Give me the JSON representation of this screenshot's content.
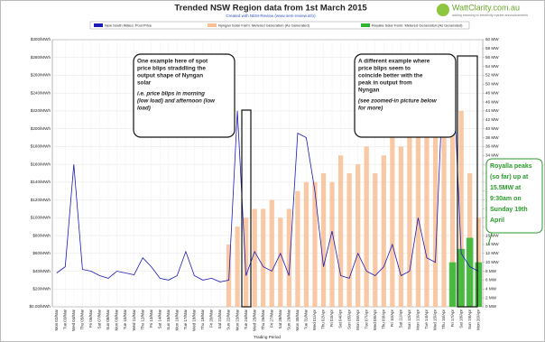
{
  "chart_data": {
    "type": "line",
    "title": "Trended NSW Region data from 1st March 2015",
    "subtitle": "Created with NEM-Review (www.nem-review.info)",
    "brand": "WattClarity.com.au",
    "tagline": "adding meaning to electricity market announcements",
    "x_label": "Trading Period",
    "categories": [
      "Mon 02/Mar",
      "Tue 03/Mar",
      "Wed 04/Mar",
      "Thu 05/Mar",
      "Fri 06/Mar",
      "Sat 07/Mar",
      "Sun 08/Mar",
      "Mon 09/Mar",
      "Tue 10/Mar",
      "Wed 11/Mar",
      "Thu 12/Mar",
      "Fri 13/Mar",
      "Sat 14/Mar",
      "Sun 15/Mar",
      "Mon 16/Mar",
      "Tue 17/Mar",
      "Wed 18/Mar",
      "Thu 19/Mar",
      "Fri 20/Mar",
      "Sat 21/Mar",
      "Sun 22/Mar",
      "Mon 23/Mar",
      "Tue 24/Mar",
      "Wed 25/Mar",
      "Thu 26/Mar",
      "Fri 27/Mar",
      "Sat 28/Mar",
      "Sun 29/Mar",
      "Mon 30/Mar",
      "Tue 31/Mar",
      "Wed 01/Apr",
      "Thu 02/Apr",
      "Fri 03/Apr",
      "Sat 04/Apr",
      "Sun 05/Apr",
      "Mon 06/Apr",
      "Tue 07/Apr",
      "Wed 08/Apr",
      "Thu 09/Apr",
      "Fri 10/Apr",
      "Sat 11/Apr",
      "Sun 12/Apr",
      "Mon 13/Apr",
      "Tue 14/Apr",
      "Wed 15/Apr",
      "Thu 16/Apr",
      "Fri 17/Apr",
      "Sat 18/Apr",
      "Sun 19/Apr",
      "Mon 20/Apr"
    ],
    "series": [
      {
        "name": "New South Wales: Pool Price",
        "color": "#1a1ab8",
        "values": [
          38,
          45,
          160,
          42,
          40,
          35,
          32,
          40,
          38,
          36,
          55,
          45,
          32,
          30,
          35,
          62,
          35,
          30,
          32,
          28,
          30,
          220,
          35,
          62,
          45,
          40,
          60,
          35,
          195,
          190,
          130,
          45,
          85,
          35,
          32,
          60,
          40,
          35,
          45,
          70,
          35,
          40,
          100,
          55,
          50,
          280,
          280,
          60,
          45,
          40
        ]
      },
      {
        "name": "Nyngan Solar Farm: Metered Generation (As Generated)",
        "color": "#f7bf94",
        "axis": "y2",
        "values": [
          null,
          null,
          null,
          null,
          null,
          null,
          null,
          null,
          null,
          null,
          null,
          null,
          null,
          null,
          null,
          null,
          null,
          null,
          null,
          null,
          14,
          18,
          20,
          22,
          22,
          24,
          20,
          22,
          26,
          28,
          28,
          30,
          28,
          34,
          30,
          32,
          36,
          30,
          34,
          38,
          36,
          40,
          42,
          38,
          44,
          46,
          40,
          44,
          30,
          20
        ]
      },
      {
        "name": "Royalla Solar Farm: Metered Generation (As Generated)",
        "color": "#2db52d",
        "axis": "y2",
        "values": [
          null,
          null,
          null,
          null,
          null,
          null,
          null,
          null,
          null,
          null,
          null,
          null,
          null,
          null,
          null,
          null,
          null,
          null,
          null,
          null,
          null,
          null,
          null,
          null,
          null,
          null,
          null,
          null,
          null,
          null,
          null,
          null,
          null,
          null,
          null,
          null,
          null,
          null,
          null,
          null,
          null,
          null,
          null,
          null,
          null,
          null,
          10,
          13,
          15.5,
          10
        ]
      }
    ],
    "ylim": [
      0,
      300
    ],
    "yticks": [
      {
        "value": 0,
        "label": "$0.00/MWh"
      },
      {
        "value": 20,
        "label": "$20/MWh"
      },
      {
        "value": 40,
        "label": "$40/MWh"
      },
      {
        "value": 60,
        "label": "$60/MWh"
      },
      {
        "value": 80,
        "label": "$80/MWh"
      },
      {
        "value": 100,
        "label": "$100/MWh"
      },
      {
        "value": 120,
        "label": "$120/MWh"
      },
      {
        "value": 140,
        "label": "$140/MWh"
      },
      {
        "value": 160,
        "label": "$160/MWh"
      },
      {
        "value": 180,
        "label": "$180/MWh"
      },
      {
        "value": 200,
        "label": "$200/MWh"
      },
      {
        "value": 220,
        "label": "$220/MWh"
      },
      {
        "value": 240,
        "label": "$240/MWh"
      },
      {
        "value": 260,
        "label": "$260/MWh"
      },
      {
        "value": 280,
        "label": "$280/MWh"
      },
      {
        "value": 300,
        "label": "$300/MWh"
      }
    ],
    "y2lim": [
      0,
      60
    ],
    "y2ticks": [
      {
        "value": 0,
        "label": "0 MW"
      },
      {
        "value": 2,
        "label": "2 MW"
      },
      {
        "value": 4,
        "label": "4 MW"
      },
      {
        "value": 6,
        "label": "6 MW"
      },
      {
        "value": 8,
        "label": "8 MW"
      },
      {
        "value": 10,
        "label": "10 MW"
      },
      {
        "value": 12,
        "label": "12 MW"
      },
      {
        "value": 14,
        "label": "14 MW"
      },
      {
        "value": 16,
        "label": "16 MW"
      },
      {
        "value": 18,
        "label": "18 MW"
      },
      {
        "value": 20,
        "label": "20 MW"
      },
      {
        "value": 22,
        "label": "22 MW"
      },
      {
        "value": 24,
        "label": "24 MW"
      },
      {
        "value": 26,
        "label": "26 MW"
      },
      {
        "value": 28,
        "label": "28 MW"
      },
      {
        "value": 30,
        "label": "30 MW"
      },
      {
        "value": 32,
        "label": "32 MW"
      },
      {
        "value": 34,
        "label": "34 MW"
      },
      {
        "value": 36,
        "label": "36 MW"
      },
      {
        "value": 38,
        "label": "38 MW"
      },
      {
        "value": 40,
        "label": "40 MW"
      },
      {
        "value": 42,
        "label": "42 MW"
      },
      {
        "value": 44,
        "label": "44 MW"
      },
      {
        "value": 46,
        "label": "46 MW"
      },
      {
        "value": 48,
        "label": "48 MW"
      },
      {
        "value": 50,
        "label": "50 MW"
      },
      {
        "value": 52,
        "label": "52 MW"
      },
      {
        "value": 54,
        "label": "54 MW"
      },
      {
        "value": 56,
        "label": "56 MW"
      },
      {
        "value": 58,
        "label": "58 MW"
      },
      {
        "value": 60,
        "label": "60 MW"
      }
    ],
    "grid": true,
    "annotations": [
      {
        "lines": [
          "One example here of spot",
          "price blips straddling the",
          "output shape of Nyngan",
          "solar"
        ],
        "note_lines": [
          "i.e. price blips in morning",
          "(low load) and afternoon (low",
          "load)"
        ]
      },
      {
        "lines": [
          "A different example where",
          "price blips seem to",
          "coincide better with the",
          "peak in output from",
          "Nyngan"
        ],
        "note_lines": [
          "(see zoomed-in picture below",
          "for more)"
        ]
      },
      {
        "lines": [
          "Royalla peaks",
          "(so far) up at",
          "15.5MW at",
          "9:30am on",
          "Sunday 19th",
          "April"
        ]
      }
    ]
  }
}
